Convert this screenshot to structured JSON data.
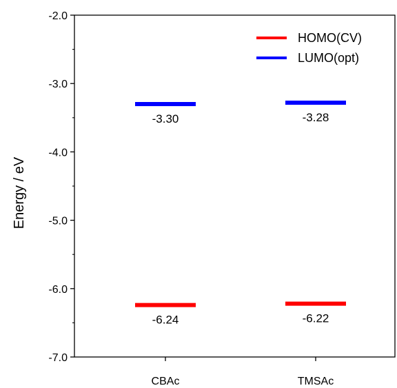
{
  "chart_data": {
    "type": "scatter",
    "title": "",
    "xlabel": "",
    "ylabel": "Energy / eV",
    "categories": [
      "CBAc",
      "TMSAc"
    ],
    "ylim": [
      -7.0,
      -2.0
    ],
    "y_ticks": [
      "-2.0",
      "-3.0",
      "-4.0",
      "-5.0",
      "-6.0",
      "-7.0"
    ],
    "grid": false,
    "legend_position": "top-right",
    "series": [
      {
        "name": "HOMO(CV)",
        "color": "#ff0000",
        "values": [
          -6.24,
          -6.22
        ],
        "labels": [
          "-6.24",
          "-6.22"
        ]
      },
      {
        "name": "LUMO(opt)",
        "color": "#0000ff",
        "values": [
          -3.3,
          -3.28
        ],
        "labels": [
          "-3.30",
          "-3.28"
        ]
      }
    ]
  }
}
